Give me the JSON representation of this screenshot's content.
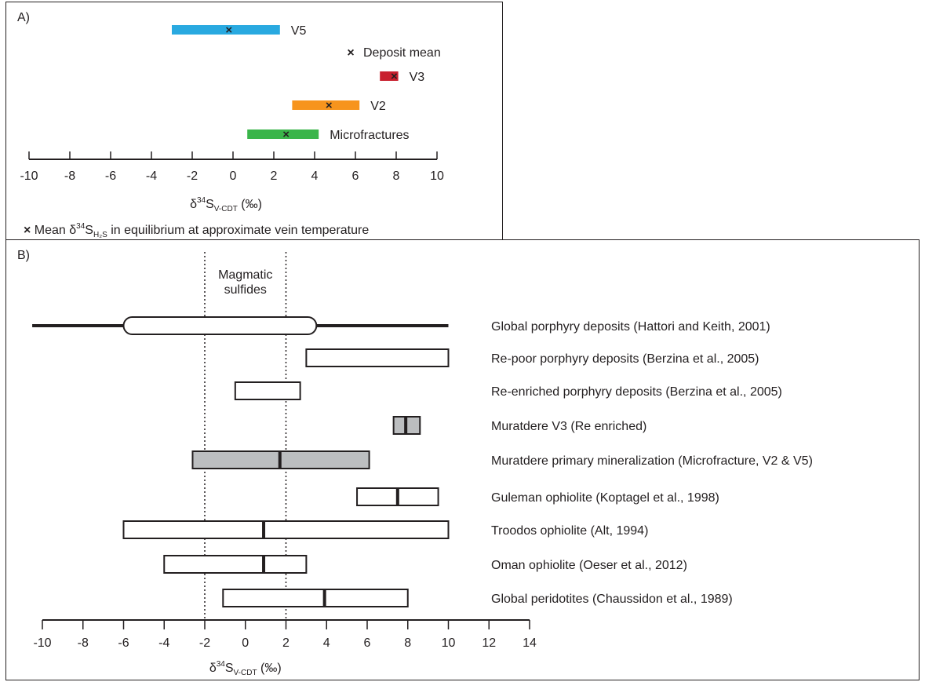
{
  "chart_data": [
    {
      "type": "range",
      "panel_label": "A)",
      "xlim": [
        -10,
        10
      ],
      "xticks": [
        -10,
        -8,
        -6,
        -4,
        -2,
        0,
        2,
        4,
        6,
        8,
        10
      ],
      "xlabel_main": "δ",
      "xlabel_sup": "34",
      "xlabel_s": "S",
      "xlabel_sub": "V-CDT",
      "xlabel_unit": " (‰)",
      "series": [
        {
          "name": "V5",
          "min": -3.0,
          "max": 2.3,
          "mean": -0.2,
          "color": "#29a9e0"
        },
        {
          "name": "V3",
          "min": 7.2,
          "max": 8.1,
          "mean": 7.9,
          "color": "#c8202e"
        },
        {
          "name": "V2",
          "min": 2.9,
          "max": 6.2,
          "mean": 4.7,
          "color": "#f7941d"
        },
        {
          "name": "Microfractures",
          "min": 0.7,
          "max": 4.2,
          "mean": 2.6,
          "color": "#3ab54a"
        }
      ],
      "deposit_mean": {
        "label": "Deposit mean",
        "marker": "×",
        "color": "#6a2c91"
      },
      "note": {
        "marker": "×",
        "prefix": " Mean δ",
        "sup": "34",
        "s": "S",
        "sub": "H₂S",
        "suffix": " in equilibrium at approximate vein temperature"
      }
    },
    {
      "type": "range",
      "panel_label": "B)",
      "xlim": [
        -10,
        14
      ],
      "xticks": [
        -10,
        -8,
        -6,
        -4,
        -2,
        0,
        2,
        4,
        6,
        8,
        10,
        12,
        14
      ],
      "xlabel_main": "δ",
      "xlabel_sup": "34",
      "xlabel_s": "S",
      "xlabel_sub": "V-CDT",
      "xlabel_unit": " (‰)",
      "magmatic_label": [
        "Magmatic",
        "sulfides"
      ],
      "magmatic_range": [
        -2,
        2
      ],
      "series": [
        {
          "name": "Global porphyry deposits (Hattori and Keith, 2001)",
          "style": "whisker",
          "min": -10.5,
          "max": 10.0,
          "box_min": -6.0,
          "box_max": 3.5
        },
        {
          "name": "Re-poor porphyry deposits (Berzina et al., 2005)",
          "style": "box",
          "min": 3.0,
          "max": 10.0
        },
        {
          "name": "Re-enriched porphyry deposits (Berzina et al., 2005)",
          "style": "box",
          "min": -0.5,
          "max": 2.7
        },
        {
          "name": "Muratdere V3 (Re enriched)",
          "style": "box-filled",
          "min": 7.3,
          "max": 8.6,
          "median": 7.9
        },
        {
          "name": "Muratdere primary mineralization (Microfracture, V2 & V5)",
          "style": "box-filled",
          "min": -2.6,
          "max": 6.1,
          "median": 1.7
        },
        {
          "name": "Guleman ophiolite (Koptagel et al., 1998)",
          "style": "box",
          "min": 5.5,
          "max": 9.5,
          "median": 7.5
        },
        {
          "name": "Troodos ophiolite (Alt, 1994)",
          "style": "box",
          "min": -6.0,
          "max": 10.0,
          "median": 0.9
        },
        {
          "name": "Oman ophiolite (Oeser et al., 2012)",
          "style": "box",
          "min": -4.0,
          "max": 3.0,
          "median": 0.9
        },
        {
          "name": "Global peridotites (Chaussidon et al., 1989)",
          "style": "box",
          "min": -1.1,
          "max": 8.0,
          "median": 3.9
        }
      ],
      "colors": {
        "box_fill_gray": "#bcbec0",
        "line": "#231f20"
      }
    }
  ]
}
